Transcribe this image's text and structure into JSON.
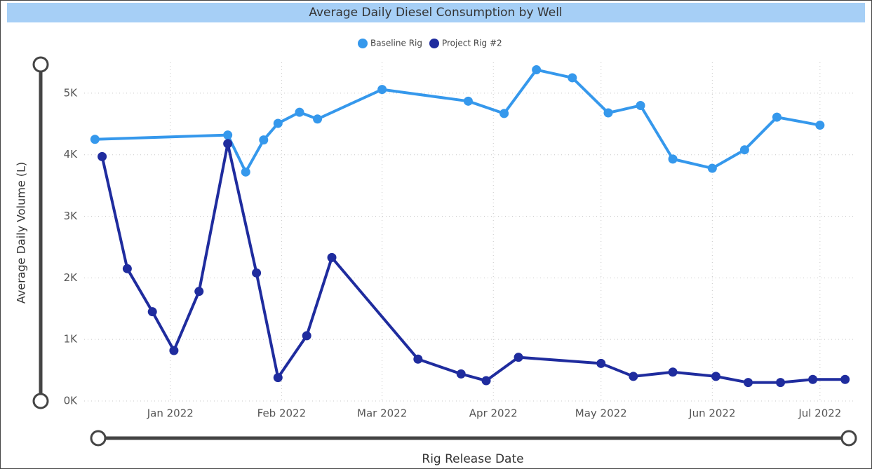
{
  "chart_data": {
    "type": "line",
    "title": "Average Daily Diesel Consumption by Well",
    "x_label": "Rig Release Date",
    "y_label": "Average Daily Volume (L)",
    "legend": "top",
    "grid": true,
    "xlim": [
      "2021-12-08",
      "2022-07-11"
    ],
    "xticks": [
      {
        "value": "2022-01-01",
        "label": "Jan 2022"
      },
      {
        "value": "2022-02-01",
        "label": "Feb 2022"
      },
      {
        "value": "2022-03-01",
        "label": "Mar 2022"
      },
      {
        "value": "2022-04-01",
        "label": "Apr 2022"
      },
      {
        "value": "2022-05-01",
        "label": "May 2022"
      },
      {
        "value": "2022-06-01",
        "label": "Jun 2022"
      },
      {
        "value": "2022-07-01",
        "label": "Jul 2022"
      }
    ],
    "ylim": [
      0,
      5500
    ],
    "yticks": [
      {
        "value": 0,
        "label": "0K"
      },
      {
        "value": 1000,
        "label": "1K"
      },
      {
        "value": 2000,
        "label": "2K"
      },
      {
        "value": 3000,
        "label": "3K"
      },
      {
        "value": 4000,
        "label": "4K"
      },
      {
        "value": 5000,
        "label": "5K"
      }
    ],
    "series": [
      {
        "name": "Baseline Rig",
        "color": "#3598ec",
        "x": [
          "2021-12-11",
          "2022-01-17",
          "2022-01-22",
          "2022-01-27",
          "2022-01-31",
          "2022-02-06",
          "2022-02-11",
          "2022-03-01",
          "2022-03-25",
          "2022-04-04",
          "2022-04-13",
          "2022-04-23",
          "2022-05-03",
          "2022-05-12",
          "2022-05-21",
          "2022-06-01",
          "2022-06-10",
          "2022-06-19",
          "2022-07-01"
        ],
        "values": [
          4250,
          4320,
          3720,
          4240,
          4510,
          4690,
          4580,
          5060,
          4870,
          4670,
          5380,
          5250,
          4680,
          4800,
          3930,
          3780,
          4080,
          4610,
          4480
        ]
      },
      {
        "name": "Project Rig #2",
        "color": "#1f2c9e",
        "x": [
          "2021-12-13",
          "2021-12-20",
          "2021-12-27",
          "2022-01-02",
          "2022-01-09",
          "2022-01-17",
          "2022-01-25",
          "2022-01-31",
          "2022-02-08",
          "2022-02-15",
          "2022-03-11",
          "2022-03-23",
          "2022-03-30",
          "2022-04-08",
          "2022-05-01",
          "2022-05-10",
          "2022-05-21",
          "2022-06-02",
          "2022-06-11",
          "2022-06-20",
          "2022-06-29",
          "2022-07-08"
        ],
        "values": [
          3970,
          2150,
          1450,
          820,
          1780,
          4180,
          2080,
          380,
          1060,
          2330,
          680,
          440,
          330,
          710,
          610,
          400,
          470,
          400,
          300,
          300,
          350,
          350
        ]
      }
    ]
  }
}
